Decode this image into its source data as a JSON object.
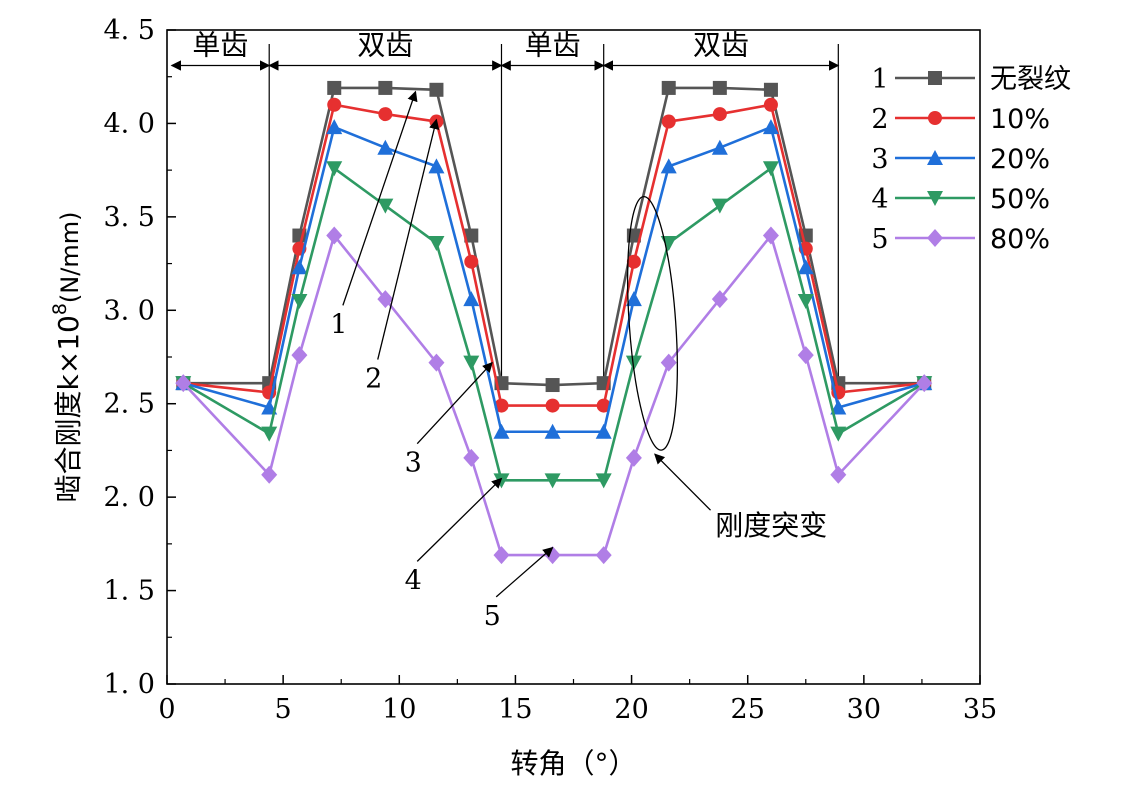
{
  "chart_data": {
    "type": "line",
    "xlabel": "转角（°）",
    "ylabel": "啮合刚度k×10",
    "ylabel_sup": "8",
    "ylabel_unit": "(N/mm)",
    "xlim": [
      0,
      35
    ],
    "ylim": [
      1.0,
      4.5
    ],
    "xticks": [
      0,
      5,
      10,
      15,
      20,
      25,
      30,
      35
    ],
    "xtick_labels": [
      "0",
      "5",
      "10",
      "15",
      "20",
      "25",
      "30",
      "35"
    ],
    "yticks": [
      1.0,
      1.5,
      2.0,
      2.5,
      3.0,
      3.5,
      4.0,
      4.5
    ],
    "ytick_labels": [
      "1. 0",
      "1. 5",
      "2. 0",
      "2. 5",
      "3. 0",
      "3. 5",
      "4. 0",
      "4. 5"
    ],
    "grid": false,
    "legend_position": "top-right",
    "regions": [
      {
        "label": "单齿",
        "x0": 0.2,
        "x1": 4.4
      },
      {
        "label": "双齿",
        "x0": 4.4,
        "x1": 14.4
      },
      {
        "label": "单齿",
        "x0": 14.4,
        "x1": 18.8
      },
      {
        "label": "双齿",
        "x0": 18.8,
        "x1": 28.9
      }
    ],
    "region_boundaries": [
      4.4,
      14.4,
      18.8,
      28.9
    ],
    "series": [
      {
        "name": "无裂纹",
        "number": "1",
        "color": "#555555",
        "marker": "square",
        "x": [
          0.7,
          4.4,
          5.7,
          7.2,
          9.4,
          11.6,
          13.1,
          14.4,
          16.6,
          18.8,
          20.1,
          21.6,
          23.8,
          26.0,
          27.5,
          28.9,
          32.6
        ],
        "y": [
          2.61,
          2.61,
          3.4,
          4.19,
          4.19,
          4.18,
          3.4,
          2.61,
          2.6,
          2.61,
          3.4,
          4.19,
          4.19,
          4.18,
          3.4,
          2.61,
          2.61
        ]
      },
      {
        "name": "10%",
        "number": "2",
        "color": "#e63030",
        "marker": "circle",
        "x": [
          0.7,
          4.4,
          5.7,
          7.2,
          9.4,
          11.6,
          13.1,
          14.4,
          16.6,
          18.8,
          20.1,
          21.6,
          23.8,
          26.0,
          27.5,
          28.9,
          32.6
        ],
        "y": [
          2.61,
          2.56,
          3.33,
          4.1,
          4.05,
          4.01,
          3.26,
          2.49,
          2.49,
          2.49,
          3.26,
          4.01,
          4.05,
          4.1,
          3.33,
          2.56,
          2.61
        ]
      },
      {
        "name": "20%",
        "number": "3",
        "color": "#1f6fd9",
        "marker": "triangle-up",
        "x": [
          0.7,
          4.4,
          5.7,
          7.2,
          9.4,
          11.6,
          13.1,
          14.4,
          16.6,
          18.8,
          20.1,
          21.6,
          23.8,
          26.0,
          27.5,
          28.9,
          32.6
        ],
        "y": [
          2.61,
          2.48,
          3.23,
          3.98,
          3.87,
          3.77,
          3.06,
          2.35,
          2.35,
          2.35,
          3.06,
          3.77,
          3.87,
          3.98,
          3.23,
          2.48,
          2.61
        ]
      },
      {
        "name": "50%",
        "number": "4",
        "color": "#2e9a63",
        "marker": "triangle-down",
        "x": [
          0.7,
          4.4,
          5.7,
          7.2,
          9.4,
          11.6,
          13.1,
          14.4,
          16.6,
          18.8,
          20.1,
          21.6,
          23.8,
          26.0,
          27.5,
          28.9,
          32.6
        ],
        "y": [
          2.61,
          2.34,
          3.05,
          3.76,
          3.56,
          3.36,
          2.72,
          2.09,
          2.09,
          2.09,
          2.72,
          3.36,
          3.56,
          3.76,
          3.05,
          2.34,
          2.61
        ]
      },
      {
        "name": "80%",
        "number": "5",
        "color": "#b07ee6",
        "marker": "diamond",
        "x": [
          0.7,
          4.4,
          5.7,
          7.2,
          9.4,
          11.6,
          13.1,
          14.4,
          16.6,
          18.8,
          20.1,
          21.6,
          23.8,
          26.0,
          27.5,
          28.9,
          32.6
        ],
        "y": [
          2.61,
          2.12,
          2.76,
          3.4,
          3.06,
          2.72,
          2.21,
          1.69,
          1.69,
          1.69,
          2.21,
          2.72,
          3.06,
          3.4,
          2.76,
          2.12,
          2.61
        ]
      }
    ],
    "curve_labels": [
      {
        "text": "1",
        "label_x": 7.4,
        "label_y": 2.93,
        "target_x": 10.7,
        "target_y": 4.17
      },
      {
        "text": "2",
        "label_x": 8.9,
        "label_y": 2.64,
        "target_x": 11.6,
        "target_y": 4.02
      },
      {
        "text": "3",
        "label_x": 10.6,
        "label_y": 2.19,
        "target_x": 14.0,
        "target_y": 2.72
      },
      {
        "text": "4",
        "label_x": 10.6,
        "label_y": 1.56,
        "target_x": 14.4,
        "target_y": 2.1
      },
      {
        "text": "5",
        "label_x": 14.0,
        "label_y": 1.37,
        "target_x": 16.6,
        "target_y": 1.73
      }
    ],
    "annotation": {
      "text": "刚度突变",
      "label_x": 23.6,
      "label_y": 1.85,
      "arrow_tail_x": 23.4,
      "arrow_tail_y": 1.93,
      "arrow_head_x": 21.0,
      "arrow_head_y": 2.23,
      "ellipse_cx": 20.9,
      "ellipse_cy": 2.93,
      "ellipse_rx": 1.0,
      "ellipse_ry": 0.68
    }
  }
}
